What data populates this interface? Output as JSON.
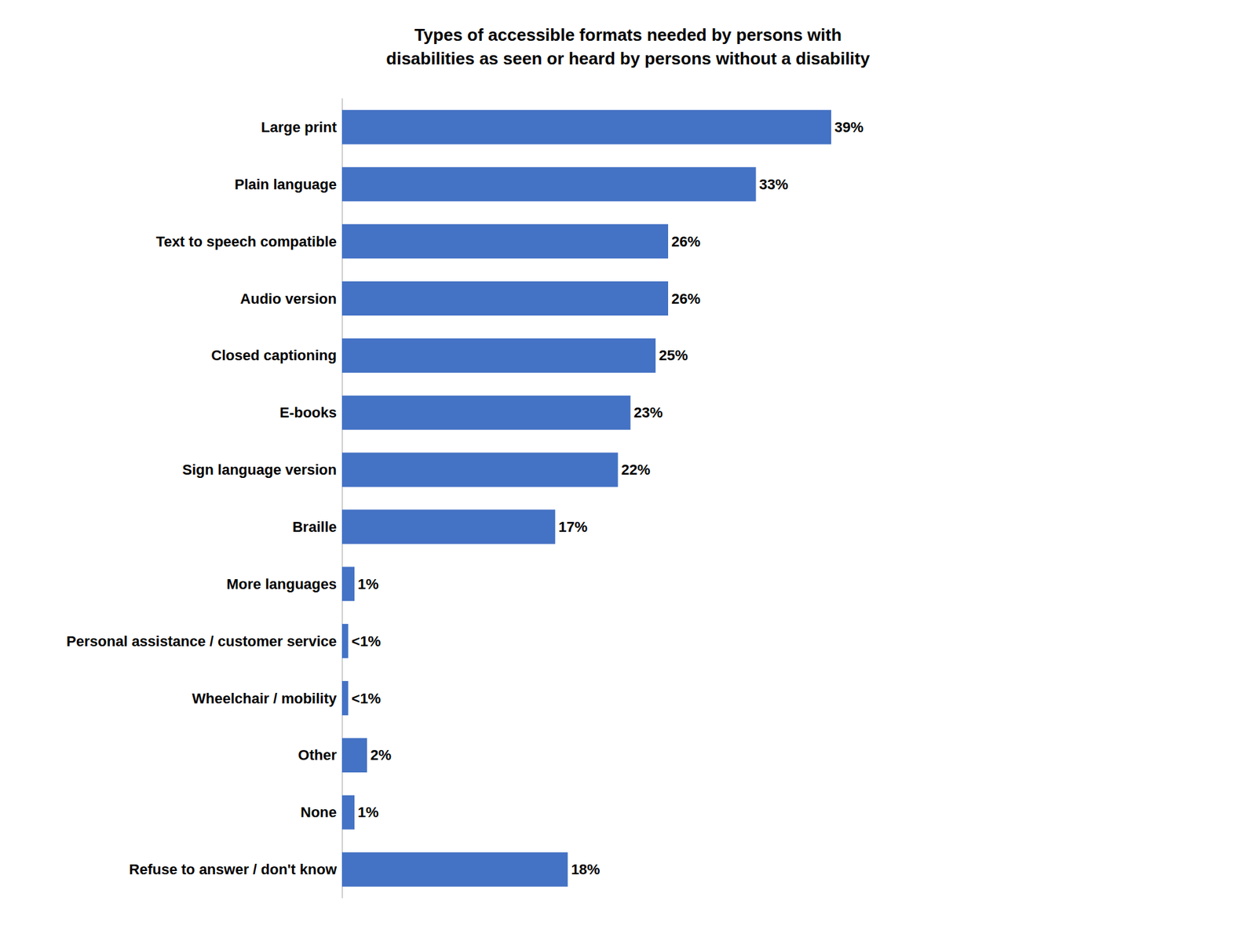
{
  "chart_data": {
    "type": "bar",
    "orientation": "horizontal",
    "title": "Types of accessible formats needed by persons with\ndisabilities as seen or heard by persons without a disability",
    "categories": [
      "Large print",
      "Plain language",
      "Text to speech compatible",
      "Audio version",
      "Closed captioning",
      "E-books",
      "Sign language version",
      "Braille",
      "More languages",
      "Personal assistance / customer service",
      "Wheelchair / mobility",
      "Other",
      "None",
      "Refuse to answer / don't know"
    ],
    "values": [
      39,
      33,
      26,
      26,
      25,
      23,
      22,
      17,
      1,
      0.5,
      0.5,
      2,
      1,
      18
    ],
    "value_labels": [
      "39%",
      "33%",
      "26%",
      "26%",
      "25%",
      "23%",
      "22%",
      "17%",
      "1%",
      "<1%",
      "<1%",
      "2%",
      "1%",
      "18%"
    ],
    "color": "#4472C4",
    "xlim": [
      0,
      65
    ],
    "grid": false,
    "data_labels": true,
    "tick_labels": "y"
  }
}
